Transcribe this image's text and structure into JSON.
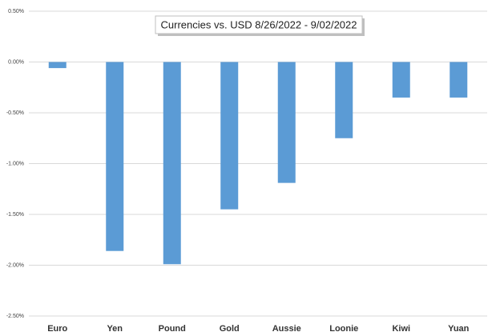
{
  "chart_data": {
    "type": "bar",
    "title": "Currencies vs. USD 8/26/2022 - 9/02/2022",
    "categories": [
      "Euro",
      "Yen",
      "Pound",
      "Gold",
      "Aussie",
      "Loonie",
      "Kiwi",
      "Yuan"
    ],
    "values": [
      -0.06,
      -1.86,
      -1.99,
      -1.45,
      -1.19,
      -0.75,
      -0.35,
      -0.35
    ],
    "color": "#5b9bd5",
    "ylim": [
      -2.5,
      0.5
    ],
    "yticks": [
      {
        "value": -2.5,
        "label": "-2.50%"
      },
      {
        "value": -2,
        "label": "-2.00%"
      },
      {
        "value": -1.5,
        "label": "-1.50%"
      },
      {
        "value": -1,
        "label": "-1.00%"
      },
      {
        "value": -0.5,
        "label": "-0.50%"
      },
      {
        "value": 0,
        "label": "0.00%"
      },
      {
        "value": 0.5,
        "label": "0.50%"
      }
    ],
    "grid": true
  }
}
